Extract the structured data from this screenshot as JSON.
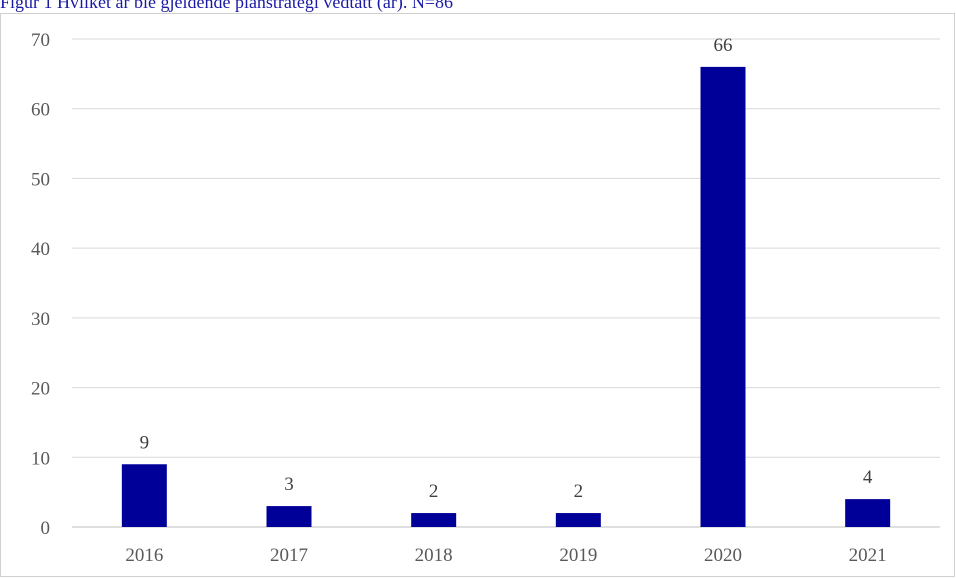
{
  "caption": "Figur 1 Hvilket år ble gjeldende planstrategi vedtatt (år). N=86",
  "colors": {
    "bar": "#000099",
    "caption": "#1a1aa6",
    "grid": "#d9d9d9",
    "axis": "#bfbfbf"
  },
  "chart_data": {
    "type": "bar",
    "categories": [
      "2016",
      "2017",
      "2018",
      "2019",
      "2020",
      "2021"
    ],
    "values": [
      9,
      3,
      2,
      2,
      66,
      4
    ],
    "data_labels": [
      "9",
      "3",
      "2",
      "2",
      "66",
      "4"
    ],
    "y_ticks": [
      "0",
      "10",
      "20",
      "30",
      "40",
      "50",
      "60",
      "70"
    ],
    "ylim": [
      0,
      70
    ],
    "grid": true,
    "legend": "none"
  }
}
